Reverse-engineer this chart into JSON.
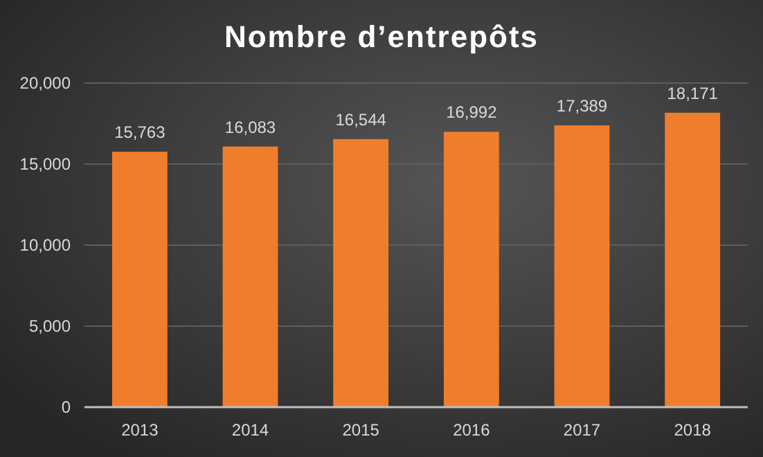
{
  "chart_data": {
    "type": "bar",
    "title": "Nombre d’entrepôts",
    "categories": [
      "2013",
      "2014",
      "2015",
      "2016",
      "2017",
      "2018"
    ],
    "values": [
      15763,
      16083,
      16544,
      16992,
      17389,
      18171
    ],
    "color": "#f07d2c",
    "ylim": [
      0,
      20000
    ],
    "yticks": [
      {
        "value": 0,
        "label": "0"
      },
      {
        "value": 5000,
        "label": "5,000"
      },
      {
        "value": 10000,
        "label": "10,000"
      },
      {
        "value": 15000,
        "label": "15,000"
      },
      {
        "value": 20000,
        "label": "20,000"
      }
    ],
    "value_labels": [
      "15,763",
      "16,083",
      "16,544",
      "16,992",
      "17,389",
      "18,171"
    ],
    "grid": "y"
  }
}
